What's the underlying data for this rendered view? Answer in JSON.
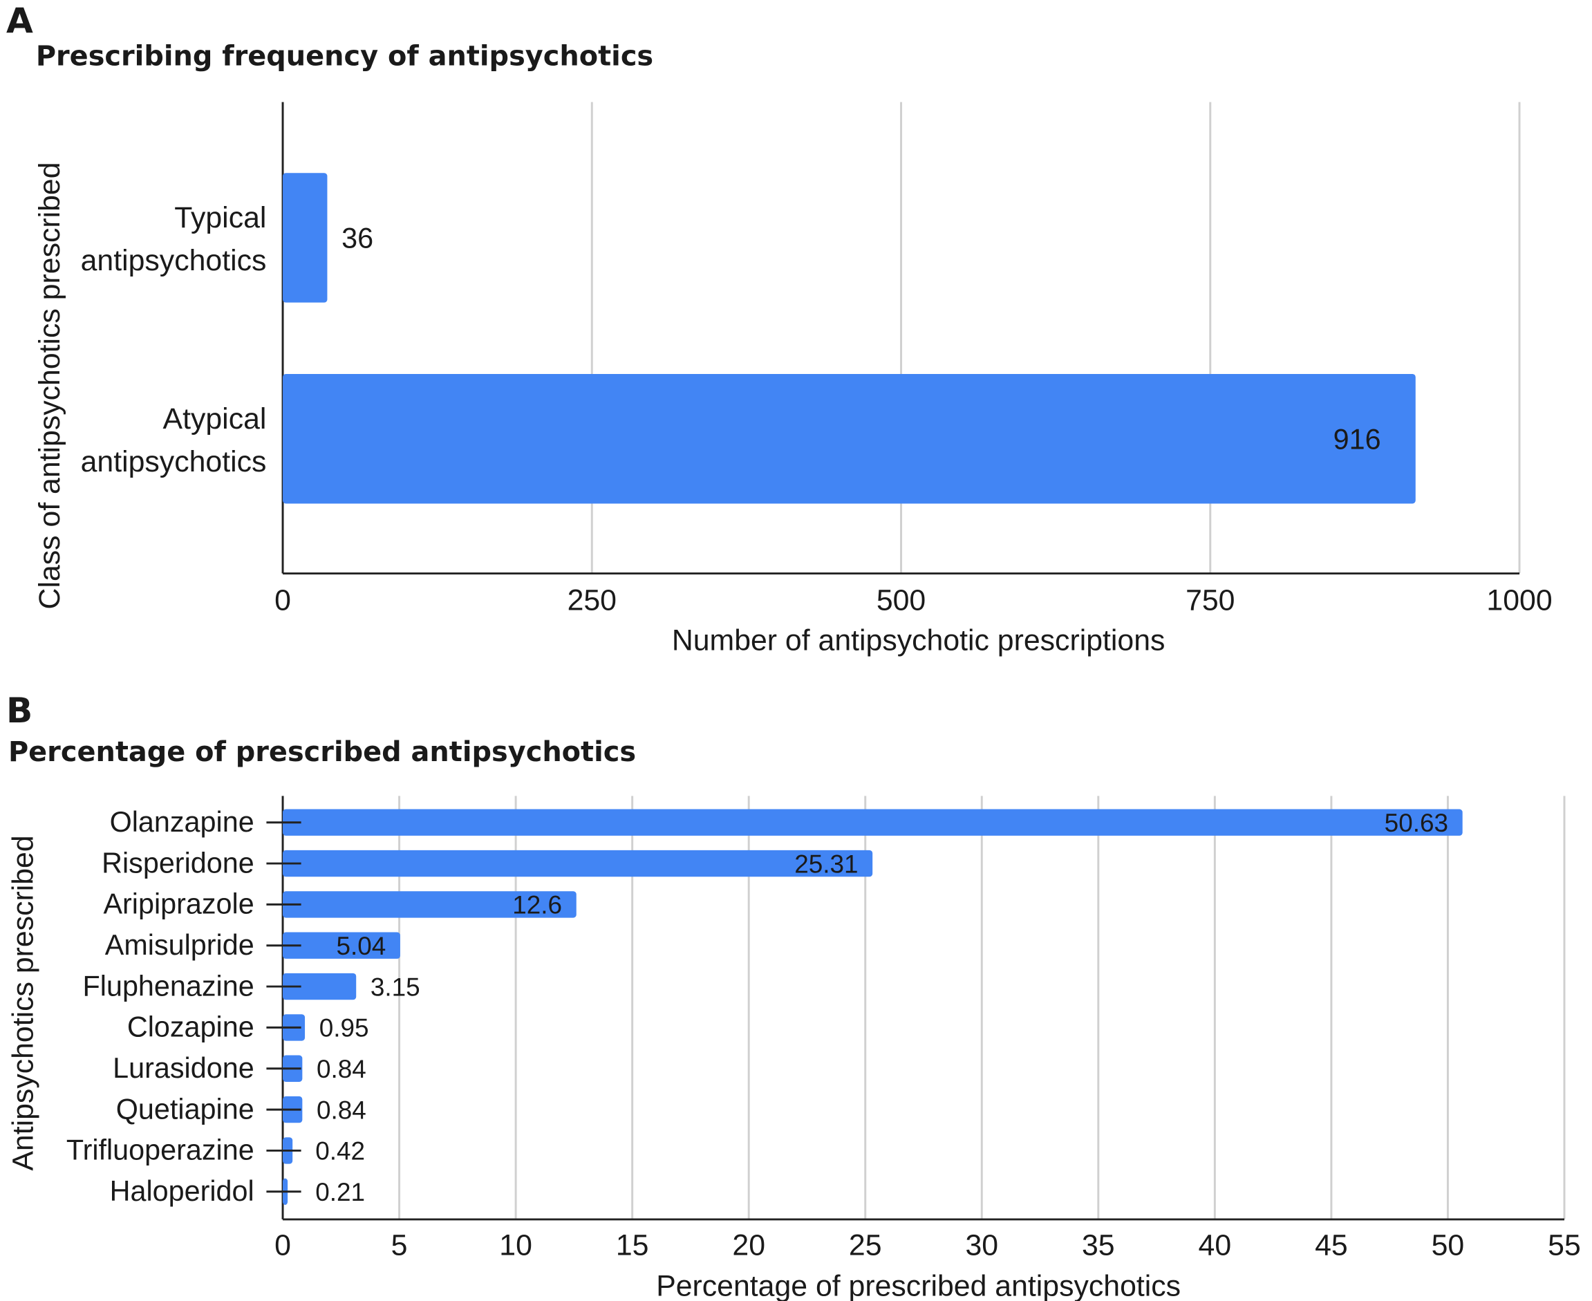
{
  "colors": {
    "bar": "#4285f4",
    "grid": "#d0d0d0",
    "axis": "#222222",
    "text": "#1a1a1a"
  },
  "chart_data": [
    {
      "panel": "A",
      "type": "bar",
      "orientation": "horizontal",
      "title": "Prescribing frequency of antipsychotics",
      "xlabel": "Number of antipsychotic prescriptions",
      "ylabel": "Class of antipsychotics prescribed",
      "categories": [
        [
          "Typical",
          "antipsychotics"
        ],
        [
          "Atypical",
          "antipsychotics"
        ]
      ],
      "values": [
        36,
        916
      ],
      "data_labels": [
        "36",
        "916"
      ],
      "xlim": [
        0,
        1000
      ],
      "xticks": [
        0,
        250,
        500,
        750,
        1000
      ],
      "grid": true
    },
    {
      "panel": "B",
      "type": "bar",
      "orientation": "horizontal",
      "title": "Percentage of prescribed antipsychotics",
      "xlabel": "Percentage of prescribed antipsychotics",
      "ylabel": "Antipsychotics prescribed",
      "categories": [
        "Olanzapine",
        "Risperidone",
        "Aripiprazole",
        "Amisulpride",
        "Fluphenazine",
        "Clozapine",
        "Lurasidone",
        "Quetiapine",
        "Trifluoperazine",
        "Haloperidol"
      ],
      "values": [
        50.63,
        25.31,
        12.6,
        5.04,
        3.15,
        0.95,
        0.84,
        0.84,
        0.42,
        0.21
      ],
      "data_labels": [
        "50.63",
        "25.31",
        "12.6",
        "5.04",
        "3.15",
        "0.95",
        "0.84",
        "0.84",
        "0.42",
        "0.21"
      ],
      "xlim": [
        0,
        55
      ],
      "xticks": [
        0,
        5,
        10,
        15,
        20,
        25,
        30,
        35,
        40,
        45,
        50,
        55
      ],
      "grid": true
    }
  ]
}
